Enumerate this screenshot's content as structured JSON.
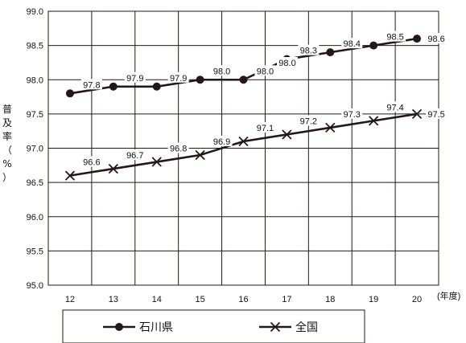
{
  "chart_data": {
    "type": "line",
    "categories": [
      "12",
      "13",
      "14",
      "15",
      "16",
      "17",
      "18",
      "19",
      "20"
    ],
    "x_unit": "(年度)",
    "ylabel": "普及率（%）",
    "ylim": [
      95.0,
      99.0
    ],
    "yticks": [
      "95.0",
      "95.5",
      "96.0",
      "96.5",
      "97.0",
      "97.5",
      "98.0",
      "98.5",
      "99.0"
    ],
    "grid": true,
    "legend_position": "bottom",
    "series": [
      {
        "name": "石川県",
        "marker": "circle",
        "color": "#231815",
        "values": [
          97.8,
          97.9,
          97.9,
          98.0,
          98.0,
          98.3,
          98.4,
          98.5,
          98.6
        ],
        "labels": [
          "97.8",
          "97.9",
          "97.9",
          "98.0",
          "98.0",
          "98.3",
          "98.4",
          "98.5",
          "98.6"
        ]
      },
      {
        "name": "全国",
        "marker": "x",
        "color": "#231815",
        "values": [
          96.6,
          96.7,
          96.8,
          96.9,
          97.1,
          97.2,
          97.3,
          97.4,
          97.5
        ],
        "labels": [
          "96.6",
          "96.7",
          "96.8",
          "96.9",
          "97.1",
          "97.2",
          "97.3",
          "97.4",
          "97.5"
        ]
      }
    ],
    "point_labels_extra": [
      "98.0"
    ]
  }
}
